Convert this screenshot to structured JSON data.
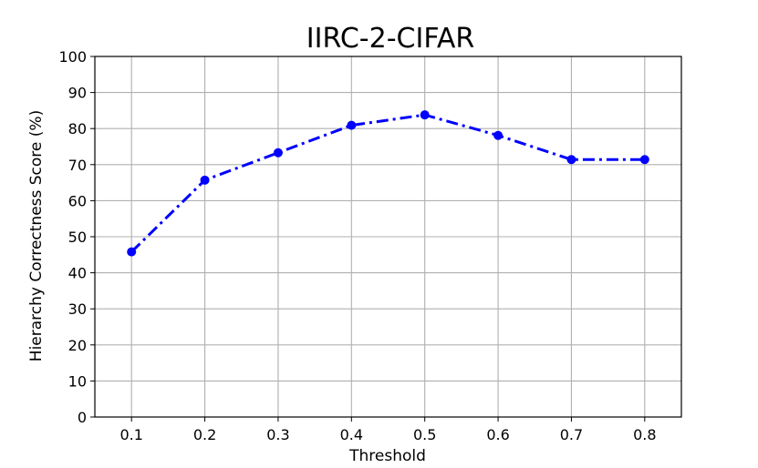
{
  "chart_data": {
    "type": "line",
    "title": "IIRC-2-CIFAR",
    "xlabel": "Threshold",
    "ylabel": "Hierarchy Correctness Score (%)",
    "x": [
      0.1,
      0.2,
      0.3,
      0.4,
      0.5,
      0.6,
      0.7,
      0.8
    ],
    "x_tick_labels": [
      "0.1",
      "0.2",
      "0.3",
      "0.4",
      "0.5",
      "0.6",
      "0.7",
      "0.8"
    ],
    "y_ticks": [
      0,
      10,
      20,
      30,
      40,
      50,
      60,
      70,
      80,
      90,
      100
    ],
    "ylim": [
      0,
      100
    ],
    "grid": true,
    "series": [
      {
        "values": [
          45.8,
          65.7,
          73.3,
          80.9,
          83.8,
          78.1,
          71.4,
          71.4
        ],
        "color": "#0000ff",
        "line_style": "dash-dot",
        "marker": "circle"
      }
    ]
  }
}
